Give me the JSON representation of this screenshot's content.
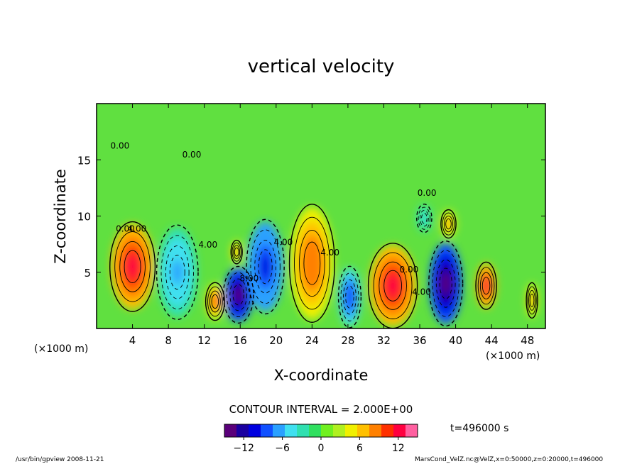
{
  "chart_data": {
    "type": "heatmap",
    "title": "vertical velocity",
    "xlabel": "X-coordinate",
    "ylabel": "Z-coordinate",
    "x_unit": "(×1000 m)",
    "xlim": [
      0,
      50
    ],
    "ylim": [
      0,
      20
    ],
    "x_ticks": [
      4,
      8,
      12,
      16,
      20,
      24,
      28,
      32,
      36,
      40,
      44,
      48
    ],
    "y_ticks": [
      5,
      10,
      15
    ],
    "contour_interval_label": "CONTOUR INTERVAL = 2.000E+00",
    "time_label": "t=496000 s",
    "colorbar": {
      "range": [
        -15,
        15
      ],
      "ticks": [
        -12,
        -6,
        0,
        6,
        12
      ],
      "colors": [
        "#5a007a",
        "#1a00a0",
        "#0000e0",
        "#1050ff",
        "#2aa0ff",
        "#40e0f0",
        "#30e0b0",
        "#30e060",
        "#70f020",
        "#b0f020",
        "#f0f000",
        "#ffc000",
        "#ff8000",
        "#ff3000",
        "#ff0040",
        "#ff60a0"
      ]
    },
    "contour_labels": [
      {
        "x": 3.2,
        "z": 8.6,
        "text": "0.00"
      },
      {
        "x": 4.5,
        "z": 8.6,
        "text": "4.00"
      },
      {
        "x": 12.4,
        "z": 7.2,
        "text": "4.00"
      },
      {
        "x": 17.0,
        "z": 4.2,
        "text": "8.00"
      },
      {
        "x": 20.8,
        "z": 7.4,
        "text": "4.00"
      },
      {
        "x": 26.0,
        "z": 6.5,
        "text": "4.00"
      },
      {
        "x": 34.8,
        "z": 5.0,
        "text": "0.00"
      },
      {
        "x": 36.2,
        "z": 3.0,
        "text": "4.00"
      },
      {
        "x": 36.8,
        "z": 11.8,
        "text": "0.00"
      },
      {
        "x": 2.6,
        "z": 16.0,
        "text": "0.00"
      },
      {
        "x": 10.6,
        "z": 15.2,
        "text": "0.00"
      }
    ],
    "cells": [
      {
        "x": 4.0,
        "z": 5.5,
        "value": 13,
        "rx": 2.4,
        "rz": 3.8
      },
      {
        "x": 9.0,
        "z": 5.0,
        "value": -6,
        "rx": 2.2,
        "rz": 4.0
      },
      {
        "x": 13.2,
        "z": 2.4,
        "value": 10,
        "rx": 1.0,
        "rz": 1.6
      },
      {
        "x": 15.8,
        "z": 3.0,
        "value": -15,
        "rx": 1.6,
        "rz": 2.4
      },
      {
        "x": 18.8,
        "z": 5.5,
        "value": -11,
        "rx": 2.0,
        "rz": 4.0
      },
      {
        "x": 15.6,
        "z": 6.8,
        "value": 8,
        "rx": 0.6,
        "rz": 1.0
      },
      {
        "x": 24.0,
        "z": 5.8,
        "value": 9,
        "rx": 2.4,
        "rz": 5.0
      },
      {
        "x": 28.2,
        "z": 2.8,
        "value": -9,
        "rx": 1.2,
        "rz": 2.6
      },
      {
        "x": 33.0,
        "z": 3.8,
        "value": 13,
        "rx": 2.6,
        "rz": 3.6
      },
      {
        "x": 38.9,
        "z": 4.0,
        "value": -15,
        "rx": 1.8,
        "rz": 3.6
      },
      {
        "x": 39.2,
        "z": 9.3,
        "value": 8,
        "rx": 0.8,
        "rz": 1.2
      },
      {
        "x": 43.4,
        "z": 3.8,
        "value": 13,
        "rx": 1.1,
        "rz": 2.0
      },
      {
        "x": 36.5,
        "z": 9.8,
        "value": -4,
        "rx": 0.8,
        "rz": 1.2
      },
      {
        "x": 48.5,
        "z": 2.5,
        "value": 8,
        "rx": 0.6,
        "rz": 1.5
      }
    ]
  },
  "footer": {
    "left": "/usr/bin/gpview   2008-11-21",
    "right": "MarsCond_VelZ.nc@VelZ,x=0:50000,z=0:20000,t=496000"
  }
}
